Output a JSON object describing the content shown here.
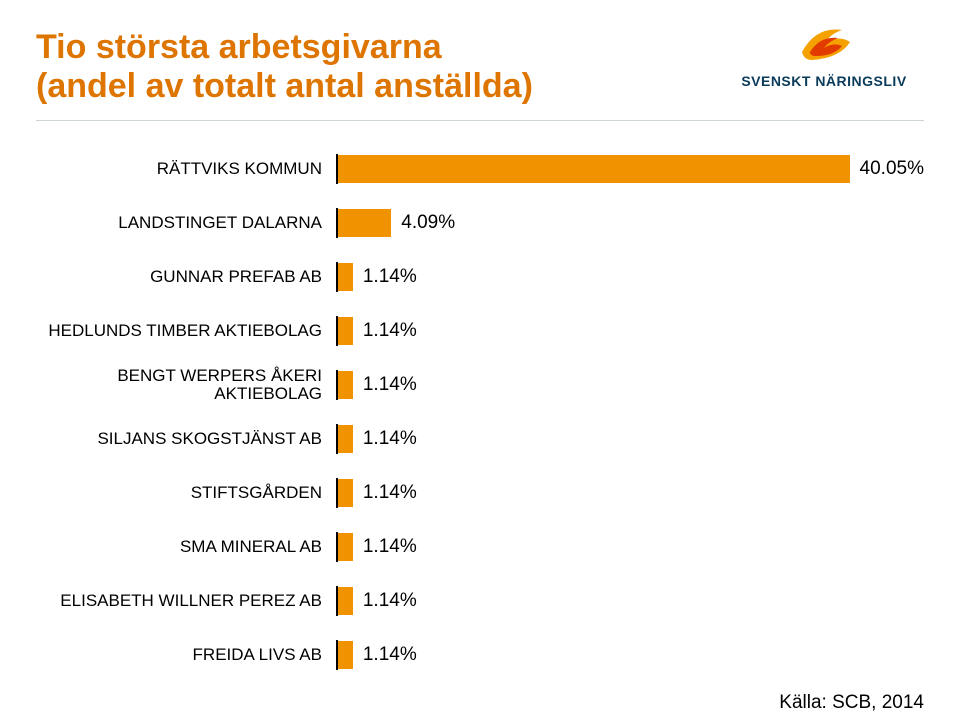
{
  "title": {
    "line1": "Tio största arbetsgivarna",
    "line2": "(andel av totalt antal anställda)"
  },
  "logo": {
    "text": "SVENSKT NÄRINGSLIV"
  },
  "chart": {
    "type": "bar",
    "orientation": "horizontal",
    "xlim": [
      0,
      45
    ],
    "bar_color": "#f19300",
    "axis_color": "#000000",
    "label_fontsize": 17,
    "value_fontsize": 19,
    "categories": [
      "RÄTTVIKS KOMMUN",
      "LANDSTINGET DALARNA",
      "GUNNAR PREFAB AB",
      "HEDLUNDS TIMBER AKTIEBOLAG",
      "BENGT WERPERS ÅKERI AKTIEBOLAG",
      "SILJANS SKOGSTJÄNST AB",
      "STIFTSGÅRDEN",
      "SMA MINERAL AB",
      "ELISABETH WILLNER PEREZ AB",
      "FREIDA LIVS AB"
    ],
    "values": [
      40.05,
      4.09,
      1.14,
      1.14,
      1.14,
      1.14,
      1.14,
      1.14,
      1.14,
      1.14
    ],
    "value_labels": [
      "40.05%",
      "4.09%",
      "1.14%",
      "1.14%",
      "1.14%",
      "1.14%",
      "1.14%",
      "1.14%",
      "1.14%",
      "1.14%"
    ]
  },
  "source": "Källa: SCB, 2014",
  "colors": {
    "title": "#dd7500",
    "rule": "#cfd6da",
    "background": "#ffffff",
    "logo_text": "#0a3b5a",
    "flame_outer": "#f5a100",
    "flame_inner": "#e23b00"
  }
}
